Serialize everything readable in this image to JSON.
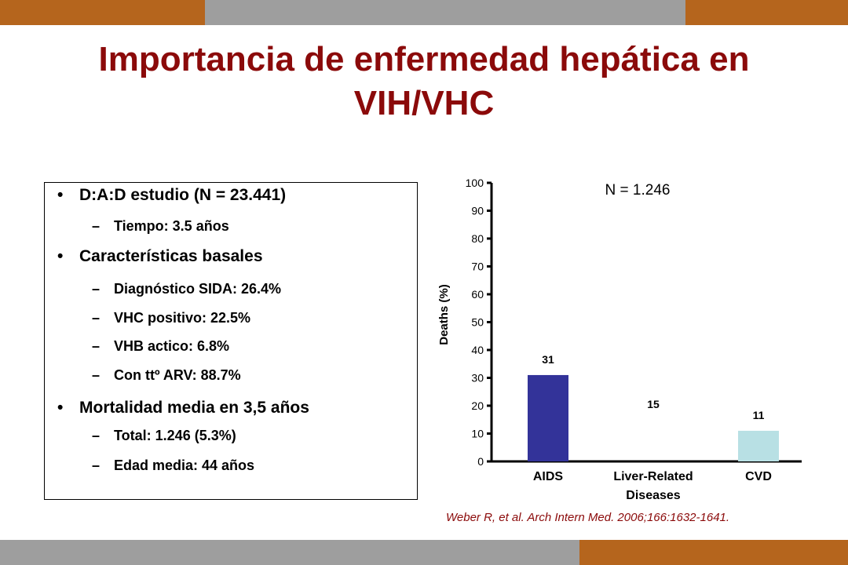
{
  "slide": {
    "title_line1": "Importancia de enfermedad hepática en",
    "title_line2": "VIH/VHC",
    "colors": {
      "title": "#8b0a0a",
      "accent_orange": "#b5651d",
      "band_gray": "#9e9e9e",
      "bar_aids": "#333399",
      "bar_cvd": "#b8e0e4"
    }
  },
  "bullets": [
    {
      "level": 1,
      "marker": "•",
      "text": "D:A:D estudio (N = 23.441)"
    },
    {
      "level": 2,
      "marker": "–",
      "text": "Tiempo: 3.5 años"
    },
    {
      "level": 1,
      "marker": "•",
      "text": "Características basales"
    },
    {
      "level": 2,
      "marker": "–",
      "text": "Diagnóstico SIDA: 26.4%"
    },
    {
      "level": 2,
      "marker": "–",
      "text": "VHC positivo: 22.5%"
    },
    {
      "level": 2,
      "marker": "–",
      "text": "VHB actico: 6.8%"
    },
    {
      "level": 2,
      "marker": "–",
      "text": "Con ttº ARV: 88.7%"
    },
    {
      "level": 1,
      "marker": "•",
      "text": "Mortalidad media en 3,5 años"
    },
    {
      "level": 2,
      "marker": "–",
      "text": "Total: 1.246 (5.3%)"
    },
    {
      "level": 2,
      "marker": "–",
      "text": "Edad media: 44 años"
    }
  ],
  "chart_data": {
    "type": "bar",
    "title": "",
    "annotation": "N = 1.246",
    "ylabel": "Deaths (%)",
    "xlabel": "",
    "ylim": [
      0,
      100
    ],
    "yticks": [
      0,
      10,
      20,
      30,
      40,
      50,
      60,
      70,
      80,
      90,
      100
    ],
    "categories": [
      {
        "lines": [
          "AIDS"
        ]
      },
      {
        "lines": [
          "Liver-Related",
          "Diseases"
        ]
      },
      {
        "lines": [
          "CVD"
        ]
      }
    ],
    "values": [
      31,
      15,
      11
    ],
    "data_labels": [
      "31",
      "15",
      "11"
    ],
    "bar_colors": [
      "#333399",
      "#ffffff",
      "#b8e0e4"
    ],
    "grid": false,
    "legend": "none"
  },
  "source": "Weber R, et al. Arch Intern Med. 2006;166:1632-1641."
}
